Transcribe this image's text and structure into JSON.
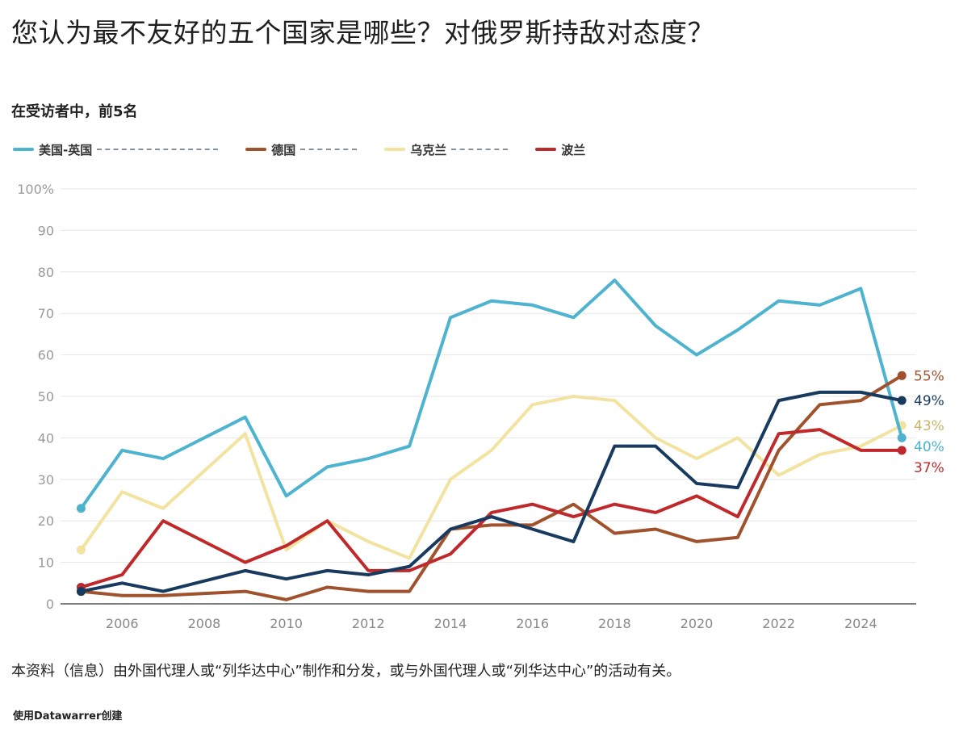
{
  "title": "您认为最不友好的五个国家是哪些？对俄罗斯持敌对态度？",
  "subtitle": "在受访者中，前5名",
  "footnote": "本资料（信息）由外国代理人或“列华达中心”制作和分发，或与外国代理人或“列华达中心”的活动有关。",
  "credit": "使用Datawarrer创建",
  "legend": [
    {
      "label": "美国-英国",
      "color": "#4db3cf"
    },
    {
      "label": "德国",
      "color": "#a0522d"
    },
    {
      "label": "乌克兰",
      "color": "#f2e3a0"
    },
    {
      "label": "波兰",
      "color": "#c0292b"
    }
  ],
  "chart_data": {
    "type": "line",
    "x": [
      2005,
      2006,
      2007,
      2008,
      2009,
      2010,
      2011,
      2012,
      2013,
      2014,
      2015,
      2016,
      2017,
      2018,
      2019,
      2020,
      2021,
      2022,
      2023,
      2024,
      2025
    ],
    "xticks": [
      2006,
      2008,
      2010,
      2012,
      2014,
      2016,
      2018,
      2020,
      2022,
      2024
    ],
    "yticks": [
      0,
      10,
      20,
      30,
      40,
      50,
      60,
      70,
      80,
      90
    ],
    "ytick_top_label": "100%",
    "ylim": [
      0,
      100
    ],
    "xlim": [
      2004.5,
      2025.35
    ],
    "grid": true,
    "series": [
      {
        "name": "乌克兰",
        "color": "#f2e3a0",
        "end_label": "43%",
        "values": [
          13,
          27,
          23,
          32,
          41,
          13,
          20,
          15,
          11,
          30,
          37,
          48,
          50,
          49,
          40,
          35,
          40,
          31,
          36,
          38,
          43
        ]
      },
      {
        "name": "美国-英国",
        "color": "#4db3cf",
        "end_label": "40%",
        "values": [
          23,
          37,
          35,
          40,
          45,
          26,
          33,
          35,
          38,
          69,
          73,
          72,
          69,
          78,
          67,
          60,
          66,
          73,
          72,
          76,
          40
        ]
      },
      {
        "name": "德国",
        "color": "#a0522d",
        "end_label": "55%",
        "values": [
          3,
          2,
          2,
          2.5,
          3,
          1,
          4,
          3,
          3,
          18,
          19,
          19,
          24,
          17,
          18,
          15,
          16,
          37,
          48,
          49,
          55
        ]
      },
      {
        "name": "波兰",
        "color": "#c0292b",
        "end_label": "37%",
        "values": [
          4,
          7,
          20,
          15,
          10,
          14,
          20,
          8,
          8,
          12,
          22,
          24,
          21,
          24,
          22,
          26,
          21,
          41,
          42,
          37,
          37
        ]
      },
      {
        "name": "",
        "color": "#173a5e",
        "end_label": "49%",
        "values": [
          3,
          5,
          3,
          5.5,
          8,
          6,
          8,
          7,
          9,
          18,
          21,
          18,
          15,
          38,
          38,
          29,
          28,
          49,
          51,
          51,
          49
        ]
      }
    ]
  }
}
